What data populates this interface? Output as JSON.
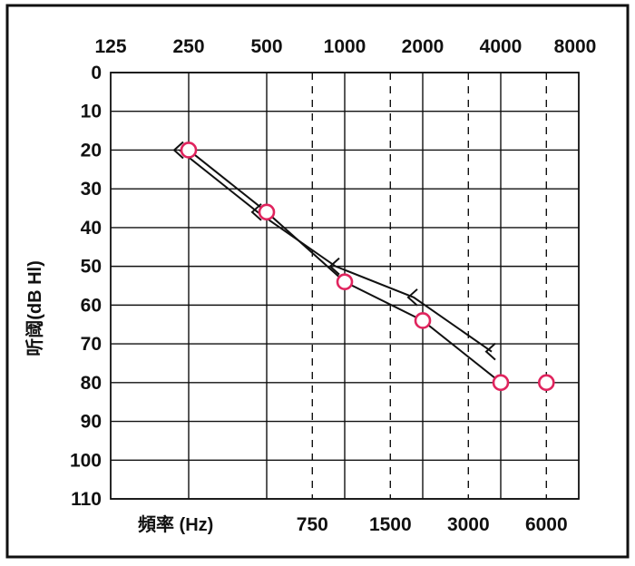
{
  "chart_data": {
    "type": "line",
    "title": "",
    "xlabel": "頻率 (Hz)",
    "ylabel": "听阈(dB Hl)",
    "x_scale": "log",
    "y_inverted": true,
    "ylim": [
      0,
      110
    ],
    "grid": true,
    "top_tick_labels": [
      "125",
      "250",
      "500",
      "1000",
      "2000",
      "4000",
      "8000"
    ],
    "bottom_tick_labels": [
      "750",
      "1500",
      "3000",
      "6000"
    ],
    "y_tick_labels": [
      "0",
      "10",
      "20",
      "30",
      "40",
      "50",
      "60",
      "70",
      "80",
      "90",
      "100",
      "110"
    ],
    "octave_frequencies": [
      125,
      250,
      500,
      1000,
      2000,
      4000,
      8000
    ],
    "interoctave_frequencies": [
      750,
      1500,
      3000,
      6000
    ],
    "series": [
      {
        "marker": "circle",
        "color": "#e0245e",
        "points": [
          {
            "x": 250,
            "y": 20
          },
          {
            "x": 500,
            "y": 36
          },
          {
            "x": 1000,
            "y": 54
          },
          {
            "x": 2000,
            "y": 64
          },
          {
            "x": 4000,
            "y": 80
          },
          {
            "x": 6000,
            "y": 80
          }
        ]
      },
      {
        "marker": "bracket-left",
        "color": "#111111",
        "points": [
          {
            "x": 250,
            "y": 20
          },
          {
            "x": 500,
            "y": 36
          },
          {
            "x": 1000,
            "y": 50
          },
          {
            "x": 2000,
            "y": 58
          },
          {
            "x": 4000,
            "y": 72
          }
        ]
      }
    ]
  }
}
